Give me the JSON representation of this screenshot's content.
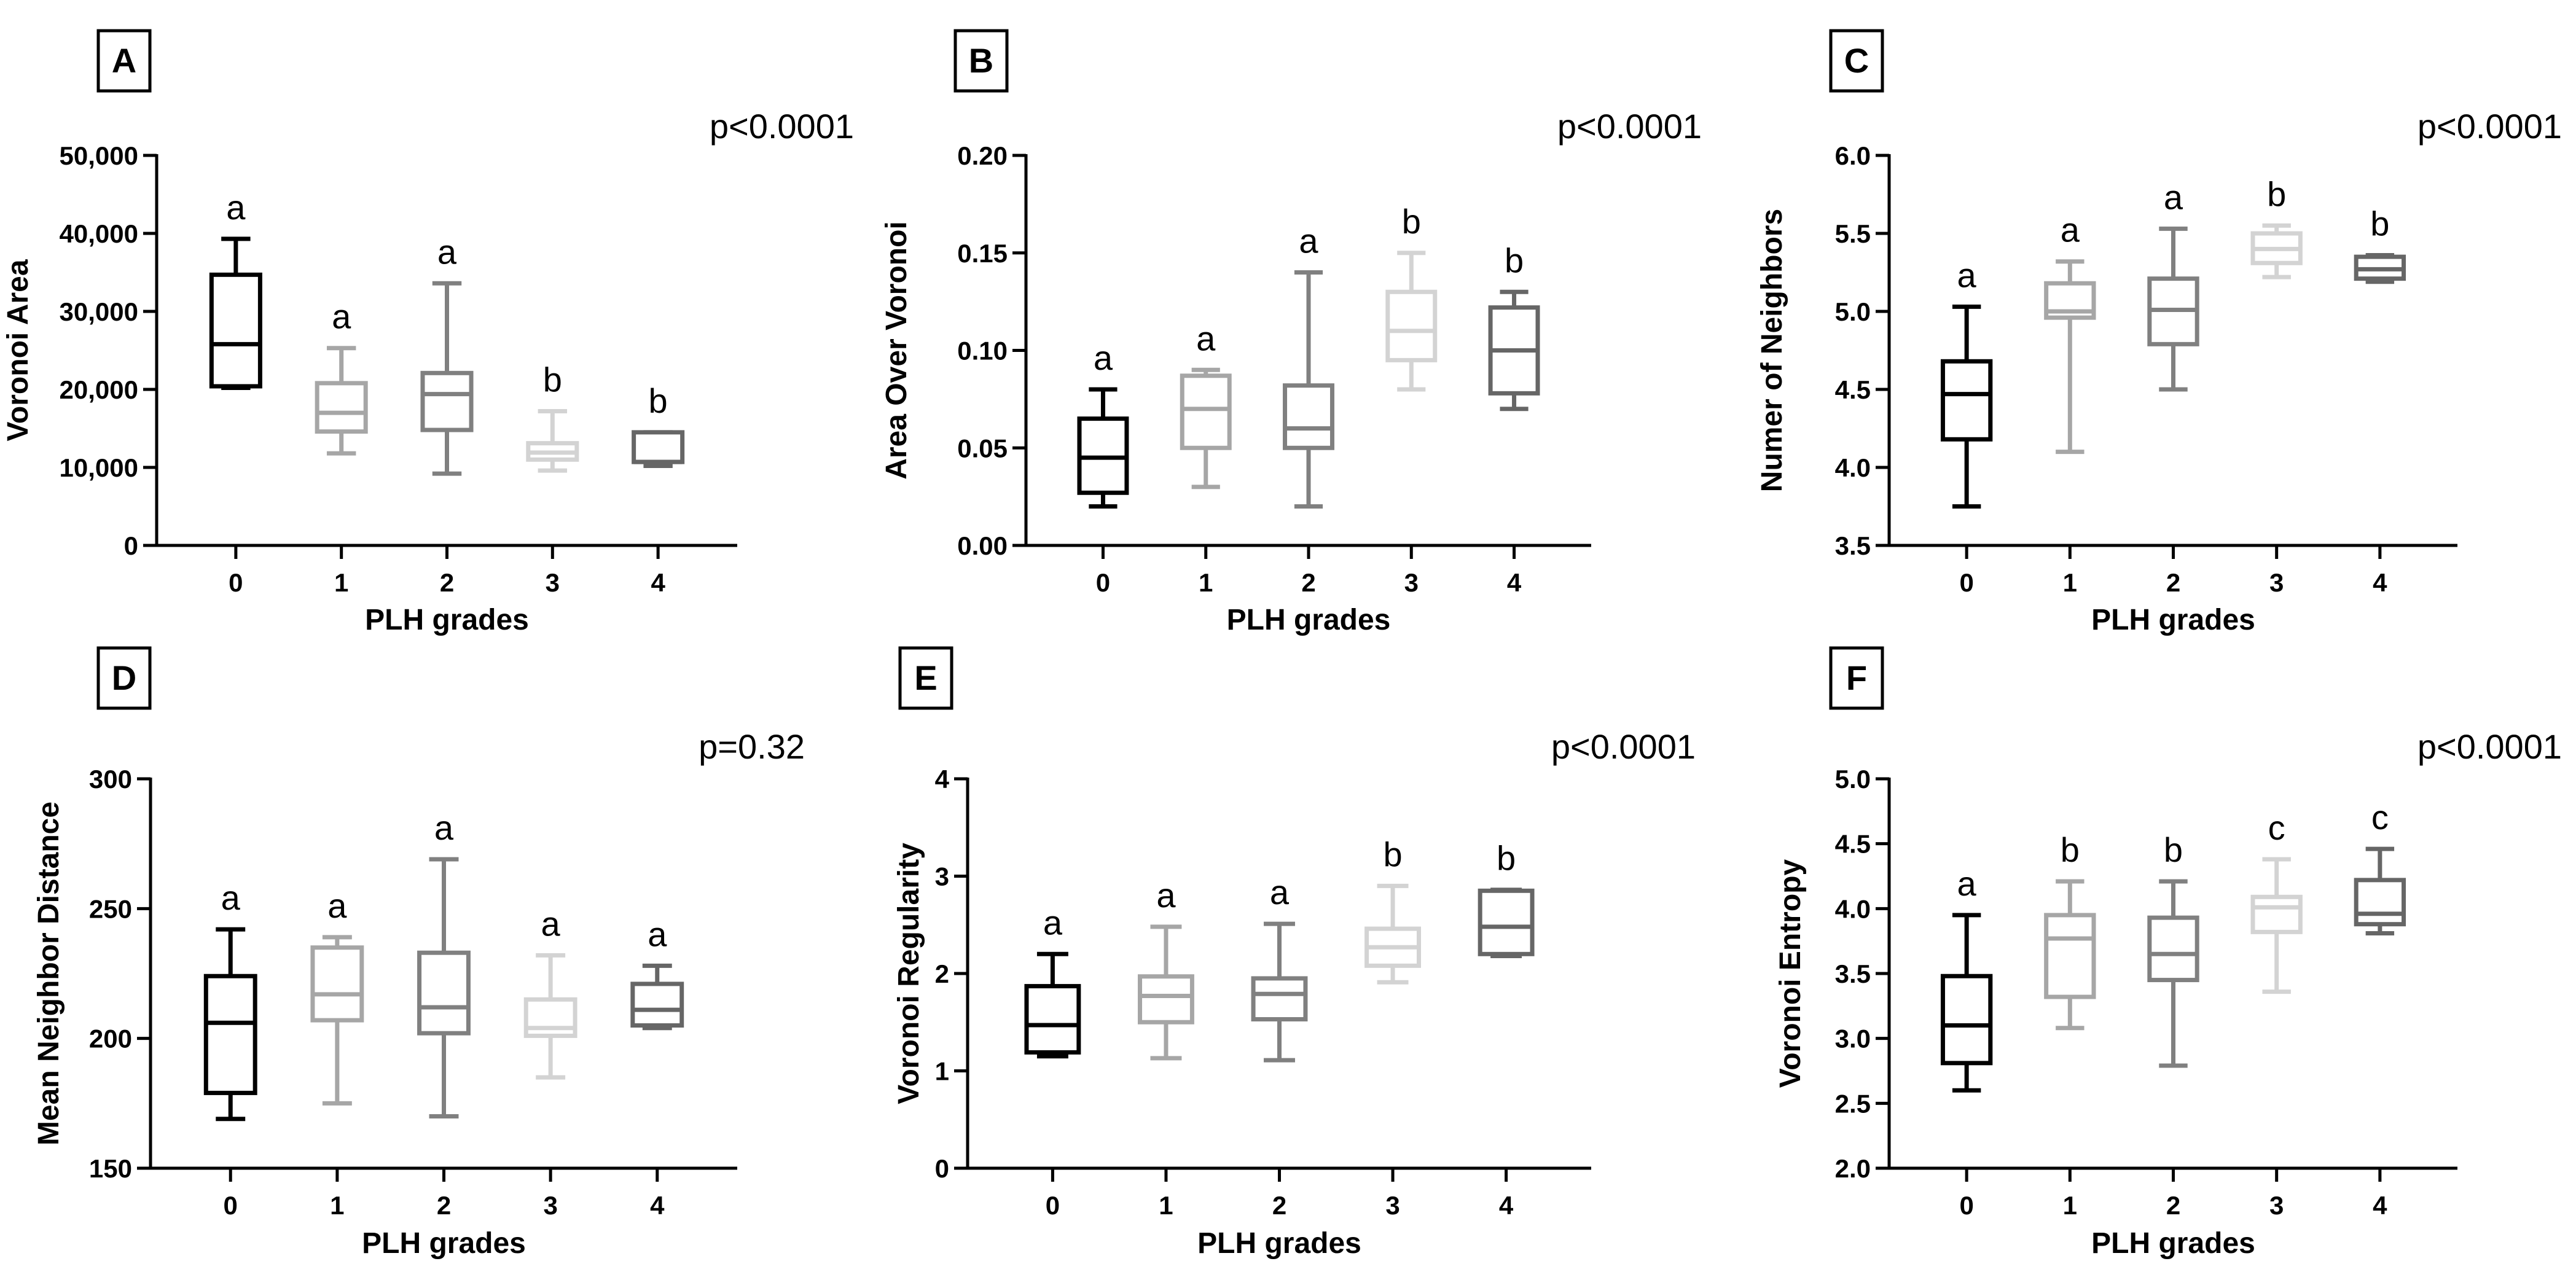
{
  "colors": {
    "grade0": "#000000",
    "grade1": "#a6a6a6",
    "grade2": "#808080",
    "grade3": "#d3d3d3",
    "grade4": "#666666",
    "axis": "#000000"
  },
  "chart_data": [
    {
      "type": "boxplot",
      "panel_label": "A",
      "p_value": "p<0.0001",
      "xlabel": "PLH grades",
      "ylabel": "Voronoi Area",
      "ylim": [
        0,
        50000
      ],
      "yticks": [
        0,
        10000,
        20000,
        30000,
        40000,
        50000
      ],
      "ytick_labels": [
        "0",
        "10,000",
        "20,000",
        "30,000",
        "40,000",
        "50,000"
      ],
      "categories": [
        "0",
        "1",
        "2",
        "3",
        "4"
      ],
      "boxes": [
        {
          "min": 20200,
          "q1": 20400,
          "median": 25800,
          "q3": 34700,
          "max": 39300,
          "letter": "a"
        },
        {
          "min": 11800,
          "q1": 14600,
          "median": 17000,
          "q3": 20800,
          "max": 25300,
          "letter": "a"
        },
        {
          "min": 9200,
          "q1": 14800,
          "median": 19400,
          "q3": 22100,
          "max": 33600,
          "letter": "a"
        },
        {
          "min": 9600,
          "q1": 11000,
          "median": 11900,
          "q3": 13100,
          "max": 17200,
          "letter": "b"
        },
        {
          "min": 10200,
          "q1": 10700,
          "median": 10700,
          "q3": 14500,
          "max": 14500,
          "letter": "b"
        }
      ]
    },
    {
      "type": "boxplot",
      "panel_label": "B",
      "p_value": "p<0.0001",
      "xlabel": "PLH grades",
      "ylabel": "Area Over Voronoi",
      "ylim": [
        0,
        0.2
      ],
      "yticks": [
        0,
        0.05,
        0.1,
        0.15,
        0.2
      ],
      "ytick_labels": [
        "0.00",
        "0.05",
        "0.10",
        "0.15",
        "0.20"
      ],
      "categories": [
        "0",
        "1",
        "2",
        "3",
        "4"
      ],
      "boxes": [
        {
          "min": 0.02,
          "q1": 0.027,
          "median": 0.045,
          "q3": 0.065,
          "max": 0.08,
          "letter": "a"
        },
        {
          "min": 0.03,
          "q1": 0.05,
          "median": 0.07,
          "q3": 0.087,
          "max": 0.09,
          "letter": "a"
        },
        {
          "min": 0.02,
          "q1": 0.05,
          "median": 0.06,
          "q3": 0.082,
          "max": 0.14,
          "letter": "a"
        },
        {
          "min": 0.08,
          "q1": 0.095,
          "median": 0.11,
          "q3": 0.13,
          "max": 0.15,
          "letter": "b"
        },
        {
          "min": 0.07,
          "q1": 0.078,
          "median": 0.1,
          "q3": 0.122,
          "max": 0.13,
          "letter": "b"
        }
      ]
    },
    {
      "type": "boxplot",
      "panel_label": "C",
      "p_value": "p<0.0001",
      "xlabel": "PLH grades",
      "ylabel": "Numer of Neighbors",
      "ylim": [
        3.5,
        6.0
      ],
      "yticks": [
        3.5,
        4.0,
        4.5,
        5.0,
        5.5,
        6.0
      ],
      "ytick_labels": [
        "3.5",
        "4.0",
        "4.5",
        "5.0",
        "5.5",
        "6.0"
      ],
      "categories": [
        "0",
        "1",
        "2",
        "3",
        "4"
      ],
      "boxes": [
        {
          "min": 3.75,
          "q1": 4.18,
          "median": 4.47,
          "q3": 4.68,
          "max": 5.03,
          "letter": "a"
        },
        {
          "min": 4.1,
          "q1": 4.96,
          "median": 5.0,
          "q3": 5.18,
          "max": 5.32,
          "letter": "a"
        },
        {
          "min": 4.5,
          "q1": 4.79,
          "median": 5.01,
          "q3": 5.21,
          "max": 5.53,
          "letter": "a"
        },
        {
          "min": 5.22,
          "q1": 5.31,
          "median": 5.4,
          "q3": 5.5,
          "max": 5.55,
          "letter": "b"
        },
        {
          "min": 5.19,
          "q1": 5.21,
          "median": 5.27,
          "q3": 5.35,
          "max": 5.36,
          "letter": "b"
        }
      ]
    },
    {
      "type": "boxplot",
      "panel_label": "D",
      "p_value": "p=0.32",
      "xlabel": "PLH grades",
      "ylabel": "Mean Neighbor Distance",
      "ylim": [
        150,
        300
      ],
      "yticks": [
        150,
        200,
        250,
        300
      ],
      "ytick_labels": [
        "150",
        "200",
        "250",
        "300"
      ],
      "categories": [
        "0",
        "1",
        "2",
        "3",
        "4"
      ],
      "boxes": [
        {
          "min": 169,
          "q1": 179,
          "median": 206,
          "q3": 224,
          "max": 242,
          "letter": "a"
        },
        {
          "min": 175,
          "q1": 207,
          "median": 217,
          "q3": 235,
          "max": 239,
          "letter": "a"
        },
        {
          "min": 170,
          "q1": 202,
          "median": 212,
          "q3": 233,
          "max": 269,
          "letter": "a"
        },
        {
          "min": 185,
          "q1": 201,
          "median": 204,
          "q3": 215,
          "max": 232,
          "letter": "a"
        },
        {
          "min": 204,
          "q1": 205,
          "median": 211,
          "q3": 221,
          "max": 228,
          "letter": "a"
        }
      ]
    },
    {
      "type": "boxplot",
      "panel_label": "E",
      "p_value": "p<0.0001",
      "xlabel": "PLH grades",
      "ylabel": "Voronoi Regularity",
      "ylim": [
        0,
        4
      ],
      "yticks": [
        0,
        1,
        2,
        3,
        4
      ],
      "ytick_labels": [
        "0",
        "1",
        "2",
        "3",
        "4"
      ],
      "categories": [
        "0",
        "1",
        "2",
        "3",
        "4"
      ],
      "boxes": [
        {
          "min": 1.15,
          "q1": 1.19,
          "median": 1.47,
          "q3": 1.87,
          "max": 2.2,
          "letter": "a"
        },
        {
          "min": 1.13,
          "q1": 1.5,
          "median": 1.77,
          "q3": 1.97,
          "max": 2.48,
          "letter": "a"
        },
        {
          "min": 1.11,
          "q1": 1.53,
          "median": 1.79,
          "q3": 1.95,
          "max": 2.51,
          "letter": "a"
        },
        {
          "min": 1.91,
          "q1": 2.08,
          "median": 2.27,
          "q3": 2.46,
          "max": 2.9,
          "letter": "b"
        },
        {
          "min": 2.18,
          "q1": 2.2,
          "median": 2.48,
          "q3": 2.85,
          "max": 2.86,
          "letter": "b"
        }
      ]
    },
    {
      "type": "boxplot",
      "panel_label": "F",
      "p_value": "p<0.0001",
      "xlabel": "PLH grades",
      "ylabel": "Voronoi Entropy",
      "ylim": [
        2.0,
        5.0
      ],
      "yticks": [
        2.0,
        2.5,
        3.0,
        3.5,
        4.0,
        4.5,
        5.0
      ],
      "ytick_labels": [
        "2.0",
        "2.5",
        "3.0",
        "3.5",
        "4.0",
        "4.5",
        "5.0"
      ],
      "categories": [
        "0",
        "1",
        "2",
        "3",
        "4"
      ],
      "boxes": [
        {
          "min": 2.6,
          "q1": 2.81,
          "median": 3.1,
          "q3": 3.48,
          "max": 3.95,
          "letter": "a"
        },
        {
          "min": 3.08,
          "q1": 3.32,
          "median": 3.77,
          "q3": 3.95,
          "max": 4.21,
          "letter": "b"
        },
        {
          "min": 2.79,
          "q1": 3.45,
          "median": 3.65,
          "q3": 3.93,
          "max": 4.21,
          "letter": "b"
        },
        {
          "min": 3.36,
          "q1": 3.82,
          "median": 4.01,
          "q3": 4.09,
          "max": 4.38,
          "letter": "c"
        },
        {
          "min": 3.81,
          "q1": 3.88,
          "median": 3.96,
          "q3": 4.22,
          "max": 4.46,
          "letter": "c"
        }
      ]
    }
  ]
}
